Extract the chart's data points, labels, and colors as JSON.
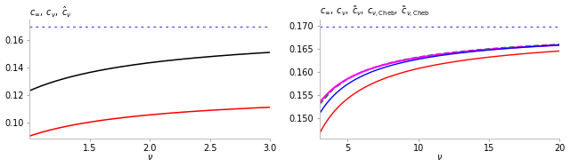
{
  "left": {
    "title": "$c_{\\infty},\\; c_{\\nu},\\; \\hat{c}_{\\nu}$",
    "xlabel": "$\\nu$",
    "xlim": [
      1.0,
      3.0
    ],
    "ylim": [
      0.088,
      0.175
    ],
    "yticks": [
      0.1,
      0.12,
      0.14,
      0.16
    ],
    "xticks": [
      1.5,
      2.0,
      2.5,
      3.0
    ],
    "hline_y": 0.16986,
    "hline_color": "#5555dd"
  },
  "right": {
    "title": "$c_{\\infty},\\; c_{\\nu},\\; \\tilde{c}_{\\nu},\\; c_{\\nu,\\mathrm{Cheb}},\\; \\tilde{c}_{\\nu,\\mathrm{Cheb}}$",
    "xlabel": "$\\nu$",
    "xlim": [
      3.0,
      20.0
    ],
    "ylim": [
      0.1455,
      0.1715
    ],
    "yticks": [
      0.15,
      0.155,
      0.16,
      0.165,
      0.17
    ],
    "xticks": [
      5,
      10,
      15,
      20
    ],
    "hline_y": 0.16986,
    "hline_color": "#5555dd"
  },
  "c_inf": 0.16986
}
